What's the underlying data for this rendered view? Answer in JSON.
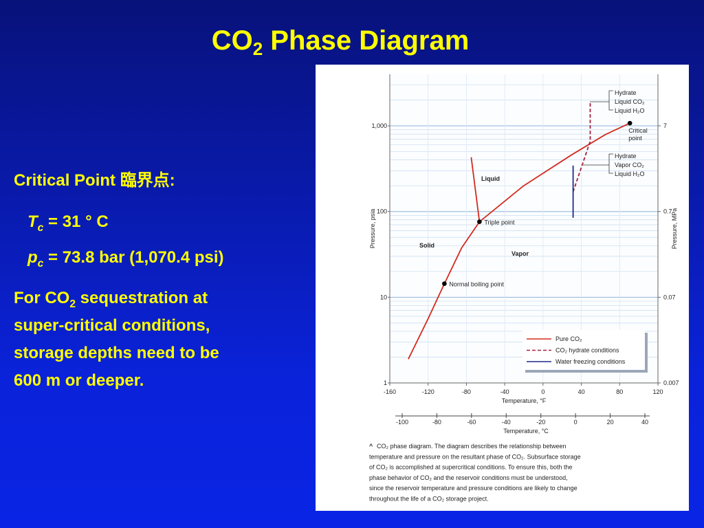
{
  "title": {
    "main": "CO",
    "sub": "2",
    "rest": " Phase Diagram"
  },
  "critical_point_heading": "Critical Point 臨界点:",
  "tc": {
    "symbol": "T",
    "sub": "c",
    "rest": " = 31 ° C"
  },
  "pc": {
    "symbol": "p",
    "sub": "c",
    "rest": " = 73.8 bar (1,070.4 psi)"
  },
  "note": {
    "line0": {
      "main": "For CO",
      "sub": "2",
      "rest": " sequestration at"
    },
    "line1": "super-critical conditions,",
    "line2": "storage depths need to be",
    "line3": "600 m or deeper."
  },
  "chart_data": {
    "type": "line",
    "xlabel": "Temperature, °F",
    "ylabel": "Pressure, psia",
    "y2label": "Pressure, MPa",
    "x2label": "Temperature, °C",
    "xlim": [
      -160,
      120
    ],
    "xticks": [
      -160,
      -120,
      -80,
      -40,
      0,
      40,
      80,
      120
    ],
    "x2lim": [
      -100,
      40
    ],
    "x2ticks": [
      -100,
      -80,
      -60,
      -40,
      -20,
      0,
      20,
      40
    ],
    "yscale": "log",
    "ylim": [
      1,
      4000
    ],
    "yticks": [
      1,
      10,
      100,
      {
        "value": 1000,
        "label": "1,000"
      }
    ],
    "yminor_ticks": [
      2,
      3,
      4,
      5,
      6,
      7,
      8,
      9,
      20,
      30,
      40,
      50,
      60,
      70,
      80,
      90,
      200,
      300,
      400,
      500,
      600,
      700,
      800,
      900,
      2000,
      3000
    ],
    "y2lim": [
      0.007,
      28
    ],
    "y2ticks": [
      0.007,
      0.07,
      0.7,
      7
    ],
    "grid": true,
    "legend": "lower right",
    "series": [
      {
        "name": "Pure CO₂",
        "color": "#d42a1e",
        "style": "solid",
        "x": [
          -140.7,
          -120.7,
          -103,
          -85,
          -66.4,
          -20.7,
          29.3,
          65,
          90.7,
          null,
          -66.4,
          -75
        ],
        "values": [
          1.9,
          5.4,
          14.4,
          37.7,
          76,
          198,
          455,
          790,
          1075,
          null,
          76,
          430
        ]
      },
      {
        "name": "CO₂ hydrate conditions",
        "color": "#a3203f",
        "style": "dashed",
        "x": [
          31.4,
          49.3,
          49.3
        ],
        "values": [
          170,
          660,
          1870
        ]
      },
      {
        "name": "Water freezing conditions",
        "color": "#1c2a85",
        "style": "solid",
        "x": [
          31.4,
          31.4
        ],
        "values": [
          84.6,
          344
        ]
      }
    ],
    "points": [
      {
        "label": "Normal boiling point",
        "x": -103,
        "y": 14.4
      },
      {
        "label": "Triple point",
        "x": -66.4,
        "y": 76
      },
      {
        "label": "Critical point",
        "x": 90.7,
        "y": 1075
      }
    ],
    "region_labels": [
      "Liquid",
      "Solid",
      "Vapor"
    ],
    "brackets": [
      [
        "Hydrate",
        "Liquid CO₂",
        "Liquid H₂O"
      ],
      [
        "Hydrate",
        "Vapor CO₂",
        "Liquid H₂O"
      ]
    ]
  },
  "caption": {
    "marker": "^",
    "lines": [
      "CO₂ phase diagram. The diagram describes the relationship between",
      "temperature and pressure on the resultant phase of CO₂. Subsurface storage",
      "of CO₂ is accomplished at supercritical conditions. To ensure this, both the",
      "phase behavior of CO₂ and the reservoir conditions must be understood,",
      "since the reservoir temperature and pressure conditions are likely to change",
      "throughout the life of a CO₂ storage project."
    ]
  }
}
